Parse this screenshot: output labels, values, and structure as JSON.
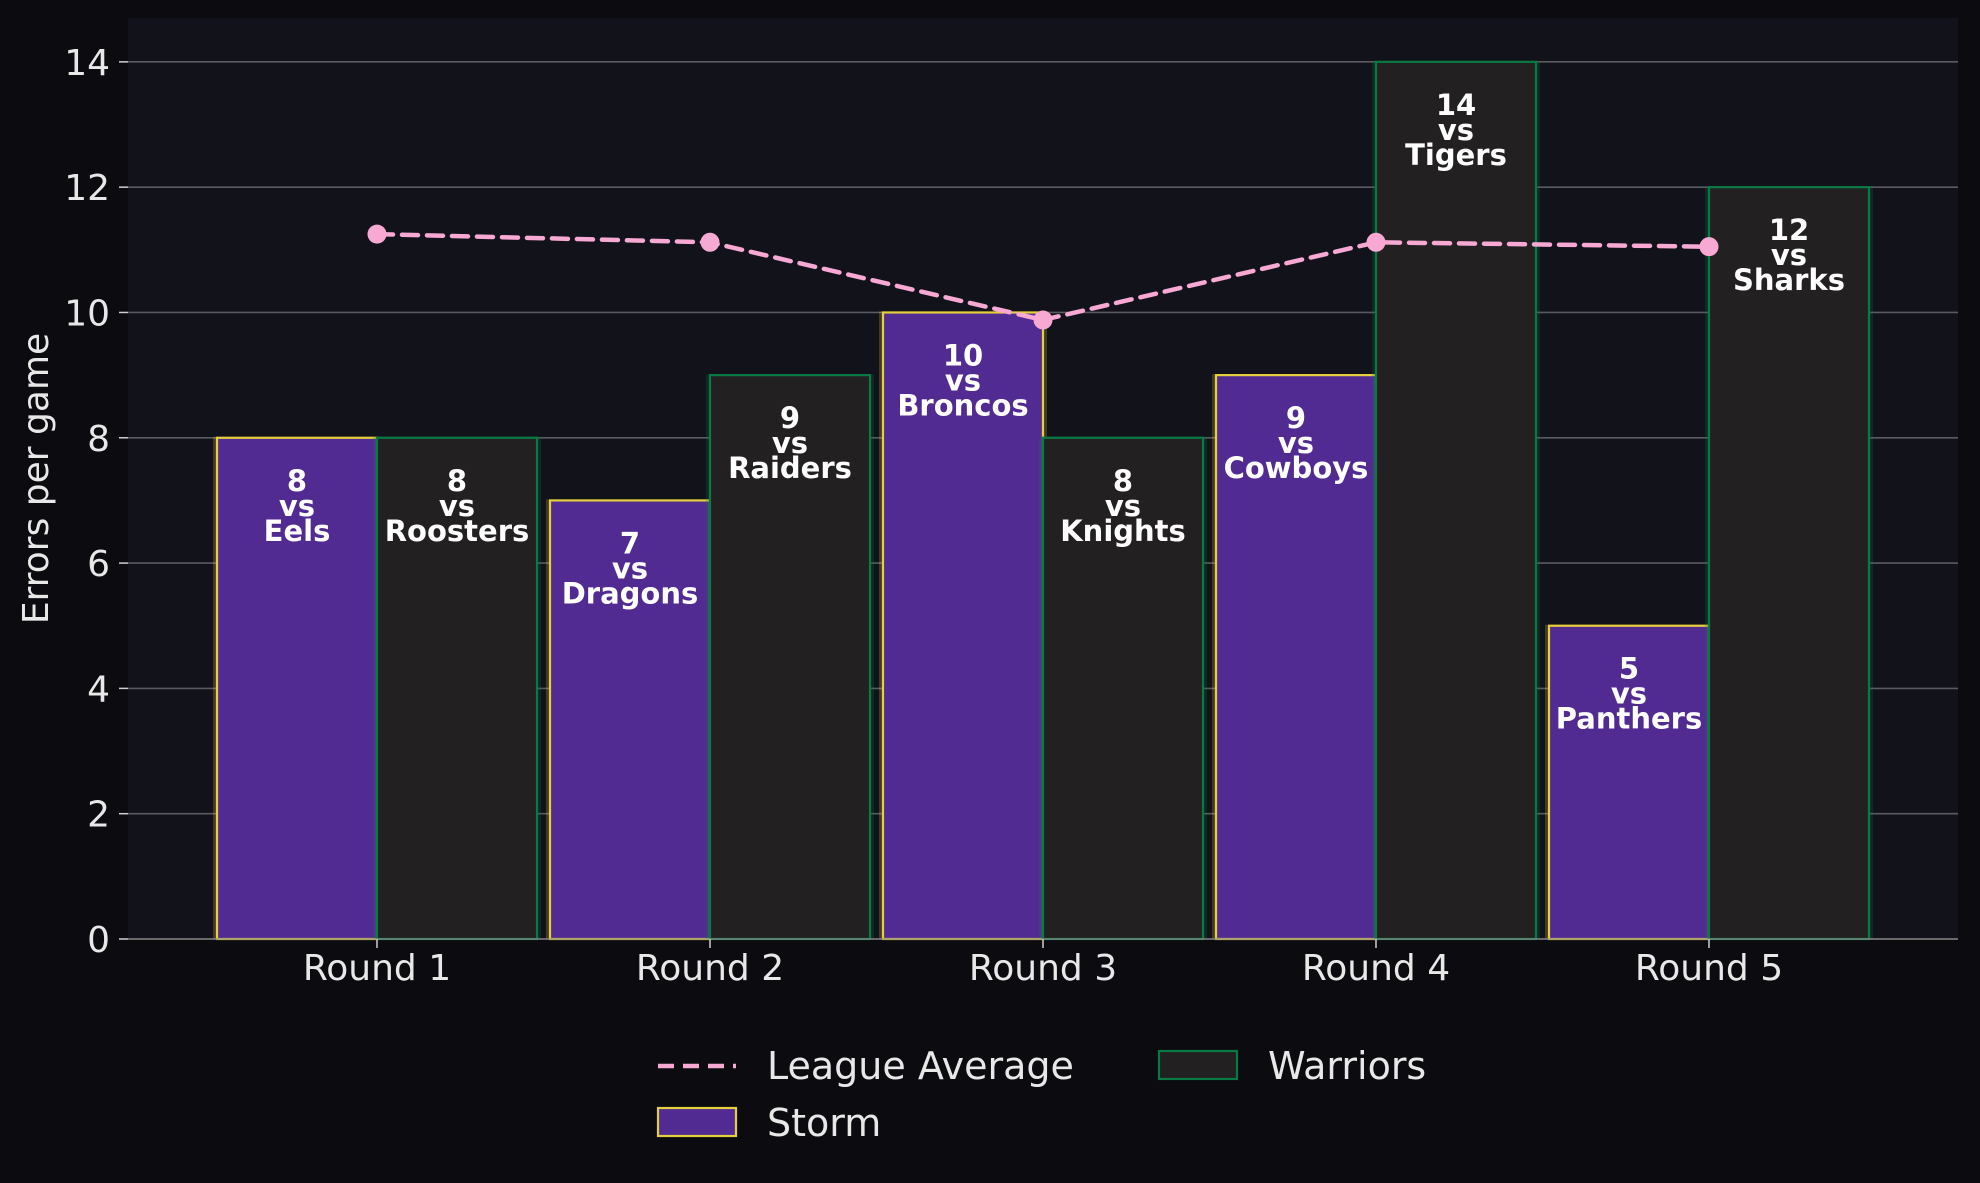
{
  "chart_data": {
    "type": "bar",
    "categories": [
      "Round 1",
      "Round 2",
      "Round 3",
      "Round 4",
      "Round 5"
    ],
    "ylabel": "Errors per game",
    "ylim": [
      0,
      14.7
    ],
    "yticks": [
      0,
      2,
      4,
      6,
      8,
      10,
      12,
      14
    ],
    "grid": "horizontal",
    "legend_position": "bottom-center",
    "colors": {
      "background": "#0b0b10",
      "plot_background": "#12121b",
      "grid": "#5a5a5f",
      "text": "#e8e8e8",
      "bar_label": "#ffffff"
    },
    "series": [
      {
        "name": "Storm",
        "kind": "bar",
        "values": [
          8,
          7,
          10,
          9,
          5
        ],
        "fill": "#522b92",
        "edge": "#e6cf3c",
        "labels": [
          [
            "8",
            "vs",
            "Eels"
          ],
          [
            "7",
            "vs",
            "Dragons"
          ],
          [
            "10",
            "vs",
            "Broncos"
          ],
          [
            "9",
            "vs",
            "Cowboys"
          ],
          [
            "5",
            "vs",
            "Panthers"
          ]
        ]
      },
      {
        "name": "Warriors",
        "kind": "bar",
        "values": [
          8,
          9,
          8,
          14,
          12
        ],
        "fill": "#232021",
        "edge": "#0a7a45",
        "labels": [
          [
            "8",
            "vs",
            "Roosters"
          ],
          [
            "9",
            "vs",
            "Raiders"
          ],
          [
            "8",
            "vs",
            "Knights"
          ],
          [
            "14",
            "vs",
            "Tigers"
          ],
          [
            "12",
            "vs",
            "Sharks"
          ]
        ]
      },
      {
        "name": "League Average",
        "kind": "line",
        "style": "dashed",
        "values": [
          11.25,
          11.12,
          9.88,
          11.12,
          11.05
        ],
        "color": "#f7a8d3"
      }
    ]
  }
}
